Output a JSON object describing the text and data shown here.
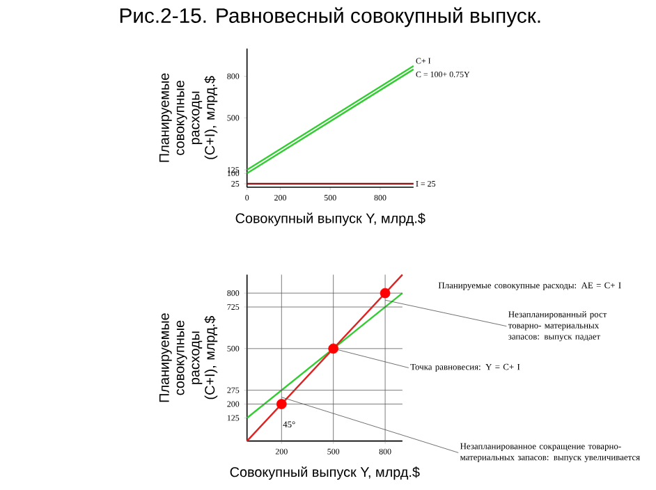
{
  "chart_data": [
    {
      "type": "line",
      "title": "Рис.2-15. Равновесный совокупный выпуск.",
      "xlabel": "Совокупный выпуск Y, млрд.$",
      "ylabel": "Планируемые совокупные расходы (C+I), млрд.$",
      "xlim": [
        0,
        1000
      ],
      "ylim": [
        0,
        1000
      ],
      "xticks": [
        0,
        200,
        500,
        800
      ],
      "yticks": [
        25,
        100,
        125,
        500,
        800
      ],
      "series": [
        {
          "name": "C+ I",
          "color": "#33cc33",
          "x": [
            0,
            1000
          ],
          "values": [
            125,
            875
          ]
        },
        {
          "name": "C = 100+ 0.75Y",
          "color": "#33cc33",
          "x": [
            0,
            1000
          ],
          "values": [
            100,
            850
          ]
        },
        {
          "name": "I = 25",
          "color": "#8b1a1a",
          "x": [
            0,
            1000
          ],
          "values": [
            25,
            25
          ]
        }
      ]
    },
    {
      "type": "line",
      "xlabel": "Совокупный выпуск Y, млрд.$",
      "ylabel": "Планируемые совокупные расходы (C+I), млрд.$",
      "xlim": [
        0,
        900
      ],
      "ylim": [
        0,
        900
      ],
      "xticks": [
        200,
        500,
        800
      ],
      "yticks": [
        125,
        200,
        275,
        500,
        725,
        800
      ],
      "series": [
        {
          "color": "#33cc33",
          "x": [
            0,
            900
          ],
          "values": [
            125,
            800
          ]
        },
        {
          "color": "#dd2222",
          "x": [
            0,
            900
          ],
          "values": [
            0,
            900
          ]
        },
        {
          "type": "scatter",
          "marker": "circle",
          "color": "#ff0000",
          "x": [
            200,
            500,
            800
          ],
          "values": [
            200,
            500,
            800
          ]
        }
      ],
      "ref_lines": [
        {
          "axis": "x",
          "value": 200
        },
        {
          "axis": "x",
          "value": 500
        },
        {
          "axis": "x",
          "value": 800
        },
        {
          "axis": "y",
          "value": 200
        },
        {
          "axis": "y",
          "value": 275
        },
        {
          "axis": "y",
          "value": 500
        },
        {
          "axis": "y",
          "value": 725
        },
        {
          "axis": "y",
          "value": 800
        }
      ],
      "annotations": [
        "Планируемые совокупные расходы: AE = C+ I",
        {
          "text": "Точка равновесия: Y = C+ I",
          "x": 500,
          "y": 500
        },
        {
          "text": "Незапланированный рост товарно- материальных запасов: выпуск падает",
          "x": 800,
          "y": 762
        },
        {
          "text": "Незапланированное сокращение товарно- материальных запасов: выпуск увеличивается",
          "x": 200,
          "y": 237
        },
        "45°"
      ]
    }
  ]
}
